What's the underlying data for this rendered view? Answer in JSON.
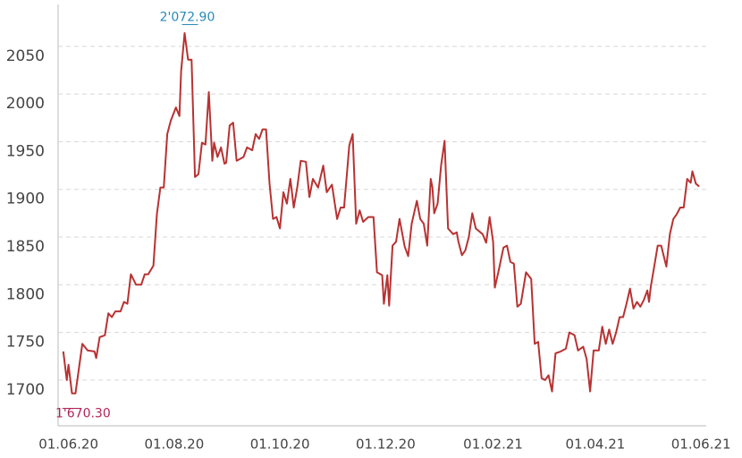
{
  "chart_data": {
    "type": "line",
    "x": [
      "29.05.20",
      "31.05.20",
      "01.06.20",
      "03.06.20",
      "05.06.20",
      "09.06.20",
      "12.06.20",
      "16.06.20",
      "17.06.20",
      "19.06.20",
      "22.06.20",
      "24.06.20",
      "26.06.20",
      "28.06.20",
      "01.07.20",
      "03.07.20",
      "05.07.20",
      "07.07.20",
      "10.07.20",
      "13.07.20",
      "15.07.20",
      "17.07.20",
      "20.07.20",
      "22.07.20",
      "24.07.20",
      "26.07.20",
      "28.07.20",
      "30.07.20",
      "02.08.20",
      "04.08.20",
      "05.08.20",
      "07.08.20",
      "09.08.20",
      "11.08.20",
      "13.08.20",
      "15.08.20",
      "17.08.20",
      "19.08.20",
      "21.08.20",
      "23.08.20",
      "24.08.20",
      "26.08.20",
      "28.08.20",
      "30.08.20",
      "31.08.20",
      "02.09.20",
      "04.09.20",
      "06.09.20",
      "10.09.20",
      "12.09.20",
      "15.09.20",
      "17.09.20",
      "19.09.20",
      "21.09.20",
      "23.09.20",
      "25.09.20",
      "27.09.20",
      "29.09.20",
      "01.10.20",
      "03.10.20",
      "05.10.20",
      "07.10.20",
      "09.10.20",
      "11.10.20",
      "13.10.20",
      "16.10.20",
      "18.10.20",
      "20.10.20",
      "23.10.20",
      "26.10.20",
      "28.10.20",
      "31.10.20",
      "03.11.20",
      "05.11.20",
      "07.11.20",
      "10.11.20",
      "12.11.20",
      "14.11.20",
      "16.11.20",
      "18.11.20",
      "21.11.20",
      "24.11.20",
      "26.11.20",
      "29.11.20",
      "30.11.20",
      "02.12.20",
      "03.12.20",
      "05.12.20",
      "07.12.20",
      "09.12.20",
      "12.12.20",
      "14.12.20",
      "16.12.20",
      "19.12.20",
      "21.12.20",
      "23.12.20",
      "25.12.20",
      "27.12.20",
      "28.12.20",
      "29.12.20",
      "31.12.20",
      "02.01.21",
      "04.01.21",
      "06.01.21",
      "09.01.21",
      "11.01.21",
      "12.01.21",
      "14.01.21",
      "16.01.21",
      "18.01.21",
      "20.01.21",
      "22.01.21",
      "26.01.21",
      "28.01.21",
      "30.01.21",
      "01.02.21",
      "02.02.21",
      "04.02.21",
      "07.02.21",
      "09.02.21",
      "11.02.21",
      "13.02.21",
      "15.02.21",
      "17.02.21",
      "20.02.21",
      "23.02.21",
      "25.02.21",
      "27.02.21",
      "01.03.21",
      "03.03.21",
      "05.03.21",
      "07.03.21",
      "09.03.21",
      "12.03.21",
      "15.03.21",
      "17.03.21",
      "20.03.21",
      "22.03.21",
      "25.03.21",
      "27.03.21",
      "29.03.21",
      "31.03.21",
      "03.04.21",
      "05.04.21",
      "07.04.21",
      "09.04.21",
      "11.04.21",
      "13.04.21",
      "15.04.21",
      "17.04.21",
      "19.04.21",
      "21.04.21",
      "23.04.21",
      "25.04.21",
      "27.04.21",
      "29.04.21",
      "01.05.21",
      "02.05.21",
      "03.05.21",
      "05.05.21",
      "07.05.21",
      "09.05.21",
      "12.05.21",
      "14.05.21",
      "16.05.21",
      "18.05.21",
      "20.05.21",
      "22.05.21",
      "24.05.21",
      "26.05.21",
      "27.05.21",
      "29.05.21",
      "31.05.21"
    ],
    "series": [
      {
        "color": "#b83232",
        "values": [
          1730,
          1700,
          1716,
          1686,
          1686,
          1738,
          1731,
          1730,
          1723,
          1745,
          1747,
          1770,
          1766,
          1772,
          1772,
          1782,
          1780,
          1811,
          1800,
          1800,
          1811,
          1811,
          1820,
          1874,
          1902,
          1902,
          1958,
          1972,
          1986,
          1977,
          2024,
          2064,
          2036,
          2036,
          1913,
          1916,
          1949,
          1947,
          2002,
          1930,
          1949,
          1934,
          1944,
          1927,
          1928,
          1967,
          1970,
          1930,
          1934,
          1944,
          1941,
          1958,
          1953,
          1963,
          1963,
          1906,
          1869,
          1871,
          1859,
          1897,
          1885,
          1911,
          1881,
          1902,
          1930,
          1929,
          1892,
          1911,
          1902,
          1925,
          1897,
          1905,
          1869,
          1881,
          1881,
          1946,
          1958,
          1864,
          1878,
          1866,
          1871,
          1871,
          1813,
          1810,
          1780,
          1810,
          1778,
          1841,
          1845,
          1869,
          1840,
          1830,
          1864,
          1888,
          1869,
          1864,
          1841,
          1911,
          1902,
          1875,
          1885,
          1925,
          1951,
          1859,
          1853,
          1855,
          1845,
          1831,
          1836,
          1850,
          1875,
          1859,
          1853,
          1844,
          1871,
          1845,
          1797,
          1813,
          1839,
          1841,
          1824,
          1822,
          1777,
          1780,
          1813,
          1806,
          1738,
          1740,
          1702,
          1700,
          1705,
          1688,
          1728,
          1730,
          1733,
          1750,
          1747,
          1731,
          1735,
          1722,
          1688,
          1731,
          1731,
          1756,
          1738,
          1753,
          1738,
          1750,
          1766,
          1766,
          1780,
          1796,
          1775,
          1782,
          1777,
          1784,
          1794,
          1782,
          1798,
          1819,
          1841,
          1841,
          1819,
          1853,
          1869,
          1874,
          1881,
          1881,
          1911,
          1907,
          1919,
          1906,
          1903
        ]
      }
    ],
    "xlim": [
      "26.05.20",
      "04.06.21"
    ],
    "xticks": [
      "01.06.20",
      "01.08.20",
      "01.10.20",
      "01.12.20",
      "01.02.21",
      "01.04.21",
      "01.06.21"
    ],
    "ylim": [
      1652,
      2094
    ],
    "yticks": [
      1700,
      1750,
      1800,
      1850,
      1900,
      1950,
      2000,
      2050
    ],
    "grid": true,
    "annotations": [
      {
        "text": "2'072.90",
        "value": 2072.9,
        "color": "#2a8ab8"
      },
      {
        "text": "1'670.30",
        "value": 1670.3,
        "color": "#b0245a"
      }
    ]
  }
}
